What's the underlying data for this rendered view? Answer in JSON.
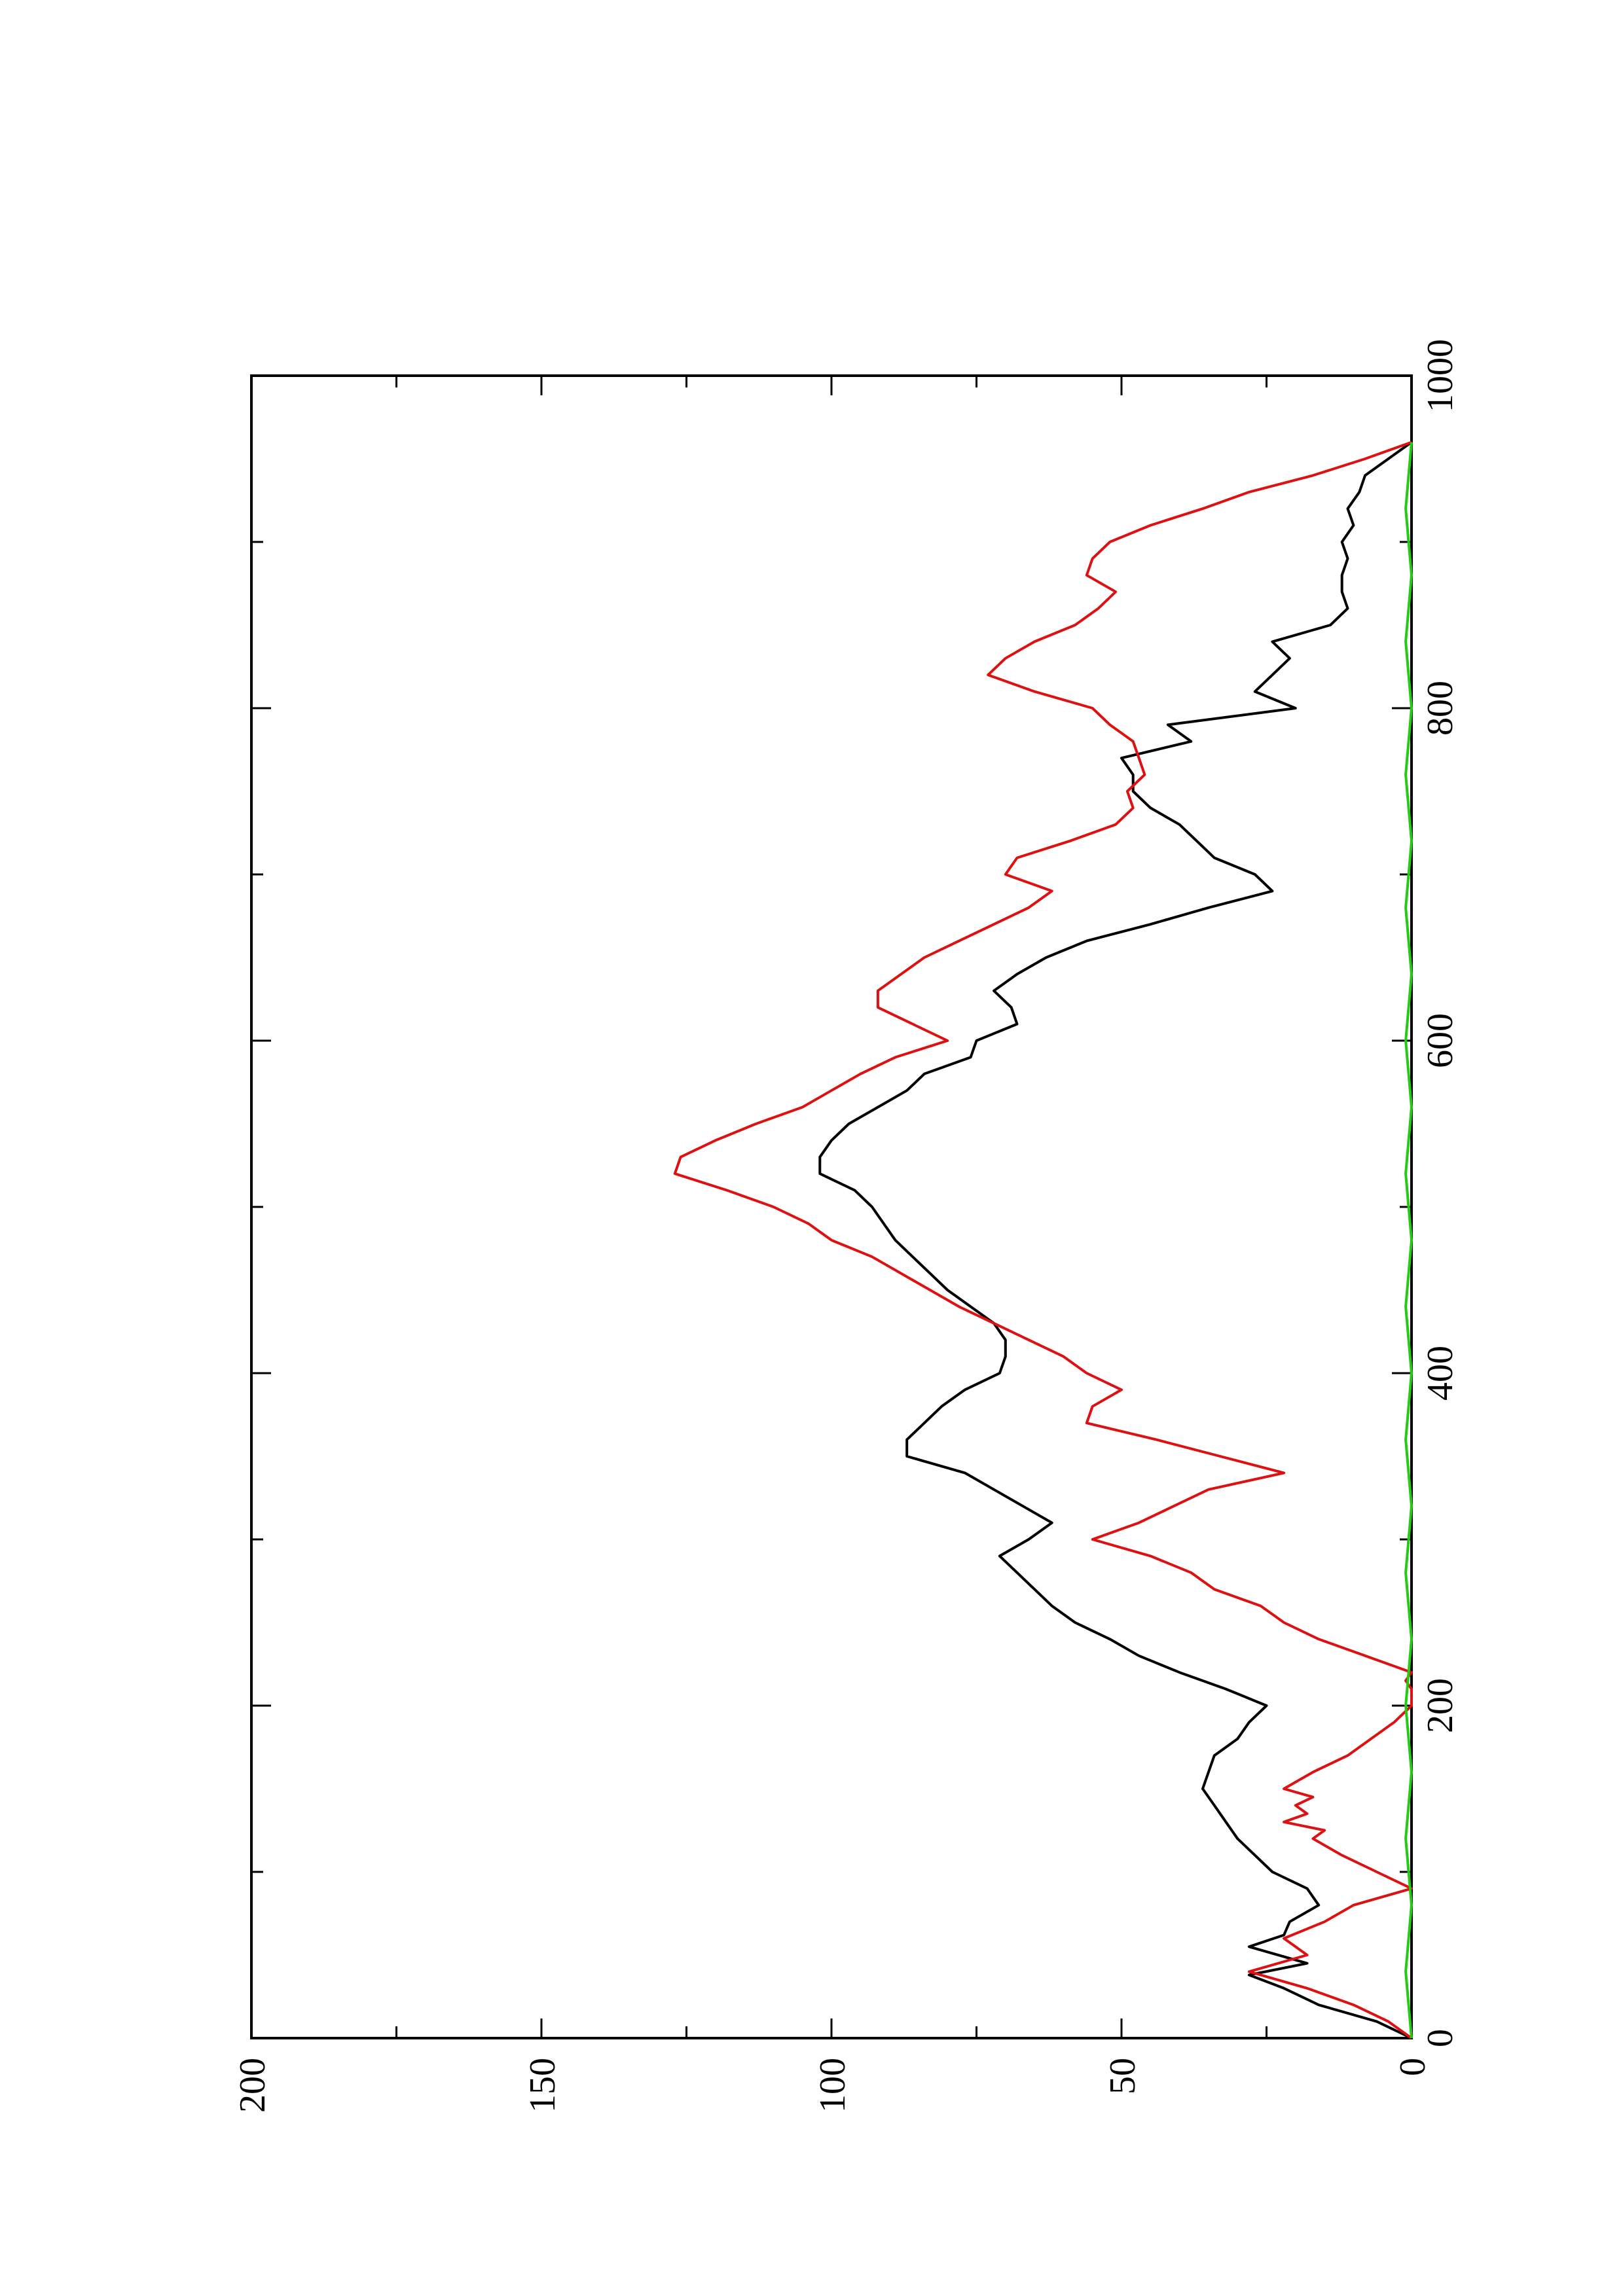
{
  "chart_data": {
    "type": "line",
    "orientation": "rotated-90-ccw",
    "title": "",
    "xlabel": "",
    "ylabel": "",
    "xlim": [
      0,
      1000
    ],
    "ylim": [
      0,
      200
    ],
    "x_ticks": [
      0,
      200,
      400,
      600,
      800,
      1000
    ],
    "x_ticks_minor": [
      100,
      300,
      500,
      700,
      900
    ],
    "y_ticks": [
      0,
      50,
      100,
      150,
      200
    ],
    "y_ticks_minor": [
      25,
      75,
      125,
      175
    ],
    "grid": false,
    "legend": "none",
    "series": [
      {
        "color": "#000000",
        "x": [
          0,
          10,
          20,
          30,
          38,
          45,
          55,
          62,
          70,
          80,
          90,
          100,
          110,
          120,
          130,
          140,
          150,
          160,
          170,
          180,
          190,
          200,
          210,
          220,
          230,
          240,
          250,
          260,
          270,
          280,
          290,
          300,
          310,
          320,
          330,
          340,
          350,
          360,
          370,
          380,
          390,
          400,
          410,
          420,
          430,
          440,
          450,
          460,
          470,
          480,
          490,
          500,
          510,
          520,
          530,
          540,
          550,
          560,
          570,
          580,
          590,
          600,
          610,
          620,
          630,
          640,
          650,
          660,
          670,
          680,
          690,
          700,
          710,
          720,
          730,
          740,
          750,
          760,
          770,
          780,
          790,
          800,
          810,
          820,
          830,
          840,
          850,
          860,
          870,
          880,
          890,
          900,
          910,
          920,
          930,
          940,
          950,
          960
        ],
        "y": [
          0,
          6,
          16,
          22,
          28,
          18,
          28,
          22,
          21,
          16,
          18,
          24,
          27,
          30,
          32,
          34,
          36,
          35,
          34,
          30,
          28,
          25,
          32,
          40,
          47,
          52,
          58,
          62,
          65,
          68,
          71,
          66,
          62,
          67,
          72,
          77,
          87,
          87,
          84,
          81,
          77,
          71,
          70,
          70,
          72,
          76,
          80,
          83,
          86,
          89,
          91,
          93,
          96,
          102,
          102,
          100,
          97,
          92,
          87,
          84,
          76,
          75,
          68,
          69,
          72,
          68,
          63,
          56,
          45,
          35,
          24,
          27,
          34,
          37,
          40,
          45,
          48,
          48,
          50,
          38,
          42,
          20,
          27,
          24,
          21,
          24,
          14,
          11,
          12,
          12,
          11,
          12,
          10,
          11,
          9,
          8,
          4,
          0
        ]
      },
      {
        "color": "#dd1111",
        "x": [
          0,
          10,
          20,
          30,
          40,
          50,
          60,
          70,
          80,
          90,
          100,
          110,
          120,
          125,
          130,
          135,
          140,
          145,
          150,
          160,
          170,
          180,
          190,
          200,
          210,
          215,
          220,
          230,
          240,
          250,
          260,
          270,
          280,
          290,
          300,
          310,
          320,
          330,
          340,
          350,
          360,
          370,
          380,
          390,
          400,
          410,
          420,
          430,
          440,
          450,
          460,
          470,
          480,
          490,
          500,
          510,
          520,
          530,
          540,
          550,
          560,
          570,
          580,
          590,
          600,
          610,
          620,
          630,
          640,
          650,
          660,
          670,
          680,
          690,
          700,
          710,
          720,
          730,
          740,
          750,
          760,
          770,
          780,
          790,
          800,
          810,
          820,
          830,
          840,
          850,
          860,
          870,
          880,
          890,
          900,
          910,
          920,
          930,
          940,
          950,
          960
        ],
        "y": [
          0,
          4,
          10,
          18,
          28,
          18,
          22,
          15,
          10,
          0,
          6,
          12,
          17,
          15,
          22,
          18,
          20,
          17,
          22,
          17,
          11,
          7,
          3,
          0,
          0,
          1,
          0,
          8,
          16,
          22,
          26,
          34,
          38,
          45,
          55,
          47,
          41,
          35,
          22,
          33,
          44,
          56,
          55,
          50,
          56,
          60,
          66,
          72,
          78,
          83,
          88,
          93,
          100,
          104,
          110,
          118,
          127,
          126,
          120,
          113,
          105,
          100,
          95,
          89,
          80,
          86,
          92,
          92,
          88,
          84,
          78,
          72,
          66,
          62,
          70,
          68,
          59,
          51,
          48,
          49,
          46,
          47,
          48,
          52,
          55,
          65,
          73,
          70,
          65,
          58,
          54,
          51,
          56,
          55,
          52,
          45,
          36,
          28,
          17,
          8,
          0
        ]
      },
      {
        "color": "#22cc11",
        "x": [
          0,
          40,
          80,
          120,
          160,
          200,
          240,
          280,
          320,
          360,
          400,
          440,
          480,
          520,
          560,
          600,
          640,
          680,
          720,
          760,
          800,
          840,
          880,
          920,
          960
        ],
        "y": [
          0,
          1,
          0,
          1,
          0,
          1,
          0,
          1,
          0,
          1,
          0,
          1,
          0,
          1,
          0,
          1,
          0,
          1,
          0,
          1,
          0,
          1,
          0,
          1,
          0
        ]
      }
    ]
  }
}
